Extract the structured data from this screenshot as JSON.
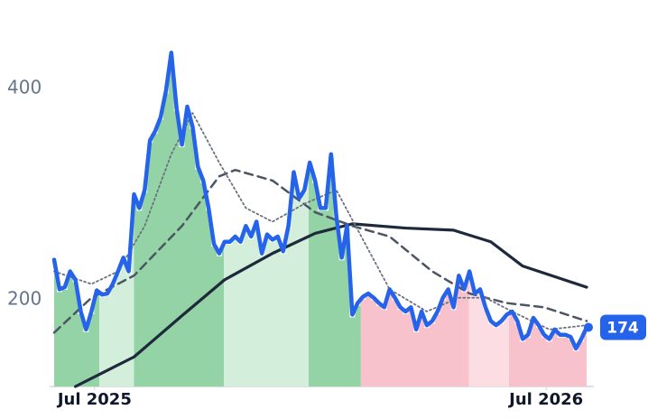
{
  "chart_data": {
    "type": "line",
    "xlim": [
      0,
      100
    ],
    "ylim": [
      118,
      460
    ],
    "xticks": [
      {
        "value": 7.6,
        "label": "Jul 2025"
      },
      {
        "value": 92.4,
        "label": "Jul 2026"
      }
    ],
    "yticks": [
      200,
      400
    ],
    "bands": [
      {
        "start": 0,
        "end": 8.5,
        "color": "#93d3a5"
      },
      {
        "start": 8.5,
        "end": 15,
        "color": "#d4eedc"
      },
      {
        "start": 15,
        "end": 31.9,
        "color": "#93d3a5"
      },
      {
        "start": 31.9,
        "end": 47.8,
        "color": "#d4eedc"
      },
      {
        "start": 47.8,
        "end": 57.6,
        "color": "#93d3a5"
      },
      {
        "start": 57.6,
        "end": 77.9,
        "color": "#f8c2cc"
      },
      {
        "start": 77.9,
        "end": 85.4,
        "color": "#fbdde3"
      },
      {
        "start": 85.4,
        "end": 100,
        "color": "#f8c2cc"
      }
    ],
    "series": [
      {
        "color": "#2563eb",
        "style": "price",
        "values": [
          238,
          210,
          212,
          227,
          219,
          189,
          172,
          189,
          209,
          205,
          206,
          215,
          227,
          240,
          227,
          300,
          287,
          304,
          351,
          360,
          373,
          398,
          434,
          381,
          347,
          383,
          364,
          326,
          313,
          287,
          253,
          244,
          255,
          255,
          260,
          255,
          270,
          260,
          274,
          244,
          262,
          257,
          260,
          246,
          270,
          321,
          296,
          304,
          330,
          313,
          287,
          287,
          338,
          279,
          240,
          270,
          186,
          197,
          203,
          206,
          202,
          197,
          193,
          210,
          202,
          193,
          189,
          193,
          172,
          189,
          176,
          180,
          189,
          202,
          210,
          193,
          223,
          210,
          227,
          206,
          210,
          193,
          180,
          176,
          180,
          186,
          189,
          180,
          163,
          167,
          183,
          176,
          167,
          163,
          172,
          167,
          167,
          165,
          154,
          163,
          174
        ]
      },
      {
        "color": "#6b7280",
        "style": "dotted",
        "x": [
          0,
          7,
          12,
          17,
          22,
          26,
          31,
          36,
          41,
          47,
          53,
          58,
          63,
          70,
          76,
          81,
          86,
          93,
          100
        ],
        "values": [
          227,
          215,
          227,
          270,
          338,
          377,
          330,
          287,
          274,
          291,
          304,
          257,
          210,
          189,
          202,
          202,
          189,
          172,
          176
        ]
      },
      {
        "color": "#4b5563",
        "style": "dashed",
        "x": [
          0,
          7,
          15,
          24,
          31,
          34,
          41,
          49,
          56,
          63,
          71,
          78,
          85,
          92,
          100
        ],
        "values": [
          169,
          202,
          223,
          270,
          317,
          323,
          313,
          283,
          270,
          260,
          227,
          206,
          197,
          193,
          180
        ]
      },
      {
        "color": "#1e293b",
        "style": "solid",
        "x": [
          4,
          15,
          24,
          32,
          41,
          49,
          56,
          66,
          75,
          82,
          88,
          100
        ],
        "values": [
          118,
          146,
          185,
          219,
          244,
          263,
          272,
          268,
          266,
          255,
          232,
          212
        ]
      }
    ]
  }
}
